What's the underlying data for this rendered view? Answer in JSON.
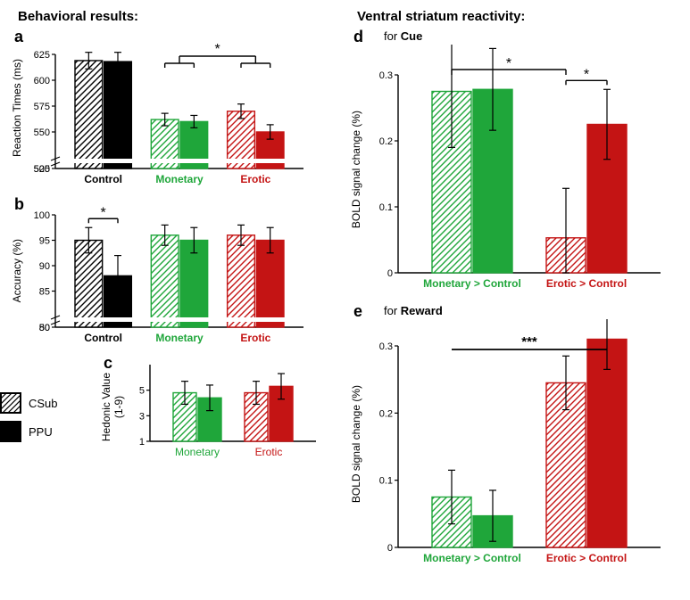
{
  "sections": {
    "left_title": "Behavioral results:",
    "right_title": "Ventral striatum reactivity:"
  },
  "legend": {
    "items": [
      {
        "label": "CSub",
        "fill": "hatched"
      },
      {
        "label": "PPU",
        "fill": "solid"
      }
    ]
  },
  "colors": {
    "black": "#000000",
    "green": "#1fa63a",
    "red": "#c41414",
    "axis": "#000000",
    "bg": "#ffffff"
  },
  "panels": {
    "a": {
      "letter": "a",
      "type": "bar",
      "ylabel": "Reaction Times (ms)",
      "ylim": [
        500,
        625
      ],
      "yticks": [
        500,
        525,
        550,
        575,
        600,
        625
      ],
      "break": true,
      "categories": [
        "Control",
        "Monetary",
        "Erotic"
      ],
      "cat_colors": [
        "#000000",
        "#1fa63a",
        "#c41414"
      ],
      "bars": [
        {
          "group": "Control",
          "sub": "CSub",
          "value": 619,
          "err": 8,
          "color": "#000000",
          "hatched": true
        },
        {
          "group": "Control",
          "sub": "PPU",
          "value": 618,
          "err": 9,
          "color": "#000000",
          "hatched": false
        },
        {
          "group": "Monetary",
          "sub": "CSub",
          "value": 562,
          "err": 6,
          "color": "#1fa63a",
          "hatched": true
        },
        {
          "group": "Monetary",
          "sub": "PPU",
          "value": 560,
          "err": 6,
          "color": "#1fa63a",
          "hatched": false
        },
        {
          "group": "Erotic",
          "sub": "CSub",
          "value": 570,
          "err": 7,
          "color": "#c41414",
          "hatched": true
        },
        {
          "group": "Erotic",
          "sub": "PPU",
          "value": 550,
          "err": 7,
          "color": "#c41414",
          "hatched": false
        }
      ],
      "sig": [
        {
          "type": "bracket",
          "between": [
            "Monetary",
            "Erotic"
          ],
          "label": "*",
          "style": "d-bracket"
        }
      ]
    },
    "b": {
      "letter": "b",
      "type": "bar",
      "ylabel": "Accuracy (%)",
      "ylim": [
        50,
        100
      ],
      "yticks": [
        50,
        80,
        85,
        90,
        95,
        100
      ],
      "break": true,
      "categories": [
        "Control",
        "Monetary",
        "Erotic"
      ],
      "cat_colors": [
        "#000000",
        "#1fa63a",
        "#c41414"
      ],
      "bars": [
        {
          "group": "Control",
          "sub": "CSub",
          "value": 95,
          "err": 2.5,
          "color": "#000000",
          "hatched": true
        },
        {
          "group": "Control",
          "sub": "PPU",
          "value": 88,
          "err": 4,
          "color": "#000000",
          "hatched": false
        },
        {
          "group": "Monetary",
          "sub": "CSub",
          "value": 96,
          "err": 2,
          "color": "#1fa63a",
          "hatched": true
        },
        {
          "group": "Monetary",
          "sub": "PPU",
          "value": 95,
          "err": 2.5,
          "color": "#1fa63a",
          "hatched": false
        },
        {
          "group": "Erotic",
          "sub": "CSub",
          "value": 96,
          "err": 2,
          "color": "#c41414",
          "hatched": true
        },
        {
          "group": "Erotic",
          "sub": "PPU",
          "value": 95,
          "err": 2.5,
          "color": "#c41414",
          "hatched": false
        }
      ],
      "sig": [
        {
          "type": "bracket",
          "between_bars": [
            0,
            1
          ],
          "label": "*"
        }
      ]
    },
    "c": {
      "letter": "c",
      "type": "bar",
      "ylabel": "Hedonic Value\n(1-9)",
      "ylim": [
        1,
        7
      ],
      "yticks": [
        1,
        3,
        5
      ],
      "break": false,
      "categories": [
        "Monetary",
        "Erotic"
      ],
      "cat_colors": [
        "#1fa63a",
        "#c41414"
      ],
      "bars": [
        {
          "group": "Monetary",
          "sub": "CSub",
          "value": 4.8,
          "err": 0.9,
          "color": "#1fa63a",
          "hatched": true
        },
        {
          "group": "Monetary",
          "sub": "PPU",
          "value": 4.4,
          "err": 1.0,
          "color": "#1fa63a",
          "hatched": false
        },
        {
          "group": "Erotic",
          "sub": "CSub",
          "value": 4.8,
          "err": 0.9,
          "color": "#c41414",
          "hatched": true
        },
        {
          "group": "Erotic",
          "sub": "PPU",
          "value": 5.3,
          "err": 1.0,
          "color": "#c41414",
          "hatched": false
        }
      ],
      "sig": []
    },
    "d": {
      "letter": "d",
      "subtitle_prefix": "for ",
      "subtitle_bold": "Cue",
      "type": "bar",
      "ylabel": "BOLD signal change (%)",
      "ylim": [
        0,
        0.3
      ],
      "yticks": [
        0,
        0.1,
        0.2,
        0.3
      ],
      "break": false,
      "categories": [
        "Monetary > Control",
        "Erotic > Control"
      ],
      "cat_colors": [
        "#1fa63a",
        "#c41414"
      ],
      "bars": [
        {
          "group": "Monetary > Control",
          "sub": "CSub",
          "value": 0.275,
          "err": 0.085,
          "color": "#1fa63a",
          "hatched": true
        },
        {
          "group": "Monetary > Control",
          "sub": "PPU",
          "value": 0.278,
          "err": 0.062,
          "color": "#1fa63a",
          "hatched": false
        },
        {
          "group": "Erotic > Control",
          "sub": "CSub",
          "value": 0.053,
          "err": 0.075,
          "color": "#c41414",
          "hatched": true
        },
        {
          "group": "Erotic > Control",
          "sub": "PPU",
          "value": 0.225,
          "err": 0.053,
          "color": "#c41414",
          "hatched": false
        }
      ],
      "sig": [
        {
          "type": "bracket",
          "between_bars": [
            2,
            3
          ],
          "label": "*"
        },
        {
          "type": "longbracket",
          "between_bars": [
            0,
            2
          ],
          "label": "*"
        }
      ]
    },
    "e": {
      "letter": "e",
      "subtitle_prefix": "for ",
      "subtitle_bold": "Reward",
      "type": "bar",
      "ylabel": "BOLD signal change (%)",
      "ylim": [
        0,
        0.3
      ],
      "yticks": [
        0,
        0.1,
        0.2,
        0.3
      ],
      "break": false,
      "categories": [
        "Monetary > Control",
        "Erotic > Control"
      ],
      "cat_colors": [
        "#1fa63a",
        "#c41414"
      ],
      "bars": [
        {
          "group": "Monetary > Control",
          "sub": "CSub",
          "value": 0.075,
          "err": 0.04,
          "color": "#1fa63a",
          "hatched": true
        },
        {
          "group": "Monetary > Control",
          "sub": "PPU",
          "value": 0.047,
          "err": 0.038,
          "color": "#1fa63a",
          "hatched": false
        },
        {
          "group": "Erotic > Control",
          "sub": "CSub",
          "value": 0.245,
          "err": 0.04,
          "color": "#c41414",
          "hatched": true
        },
        {
          "group": "Erotic > Control",
          "sub": "PPU",
          "value": 0.31,
          "err": 0.045,
          "color": "#c41414",
          "hatched": false
        }
      ],
      "sig": [
        {
          "type": "line",
          "between_bars": [
            0,
            3
          ],
          "label": "***"
        }
      ]
    }
  }
}
